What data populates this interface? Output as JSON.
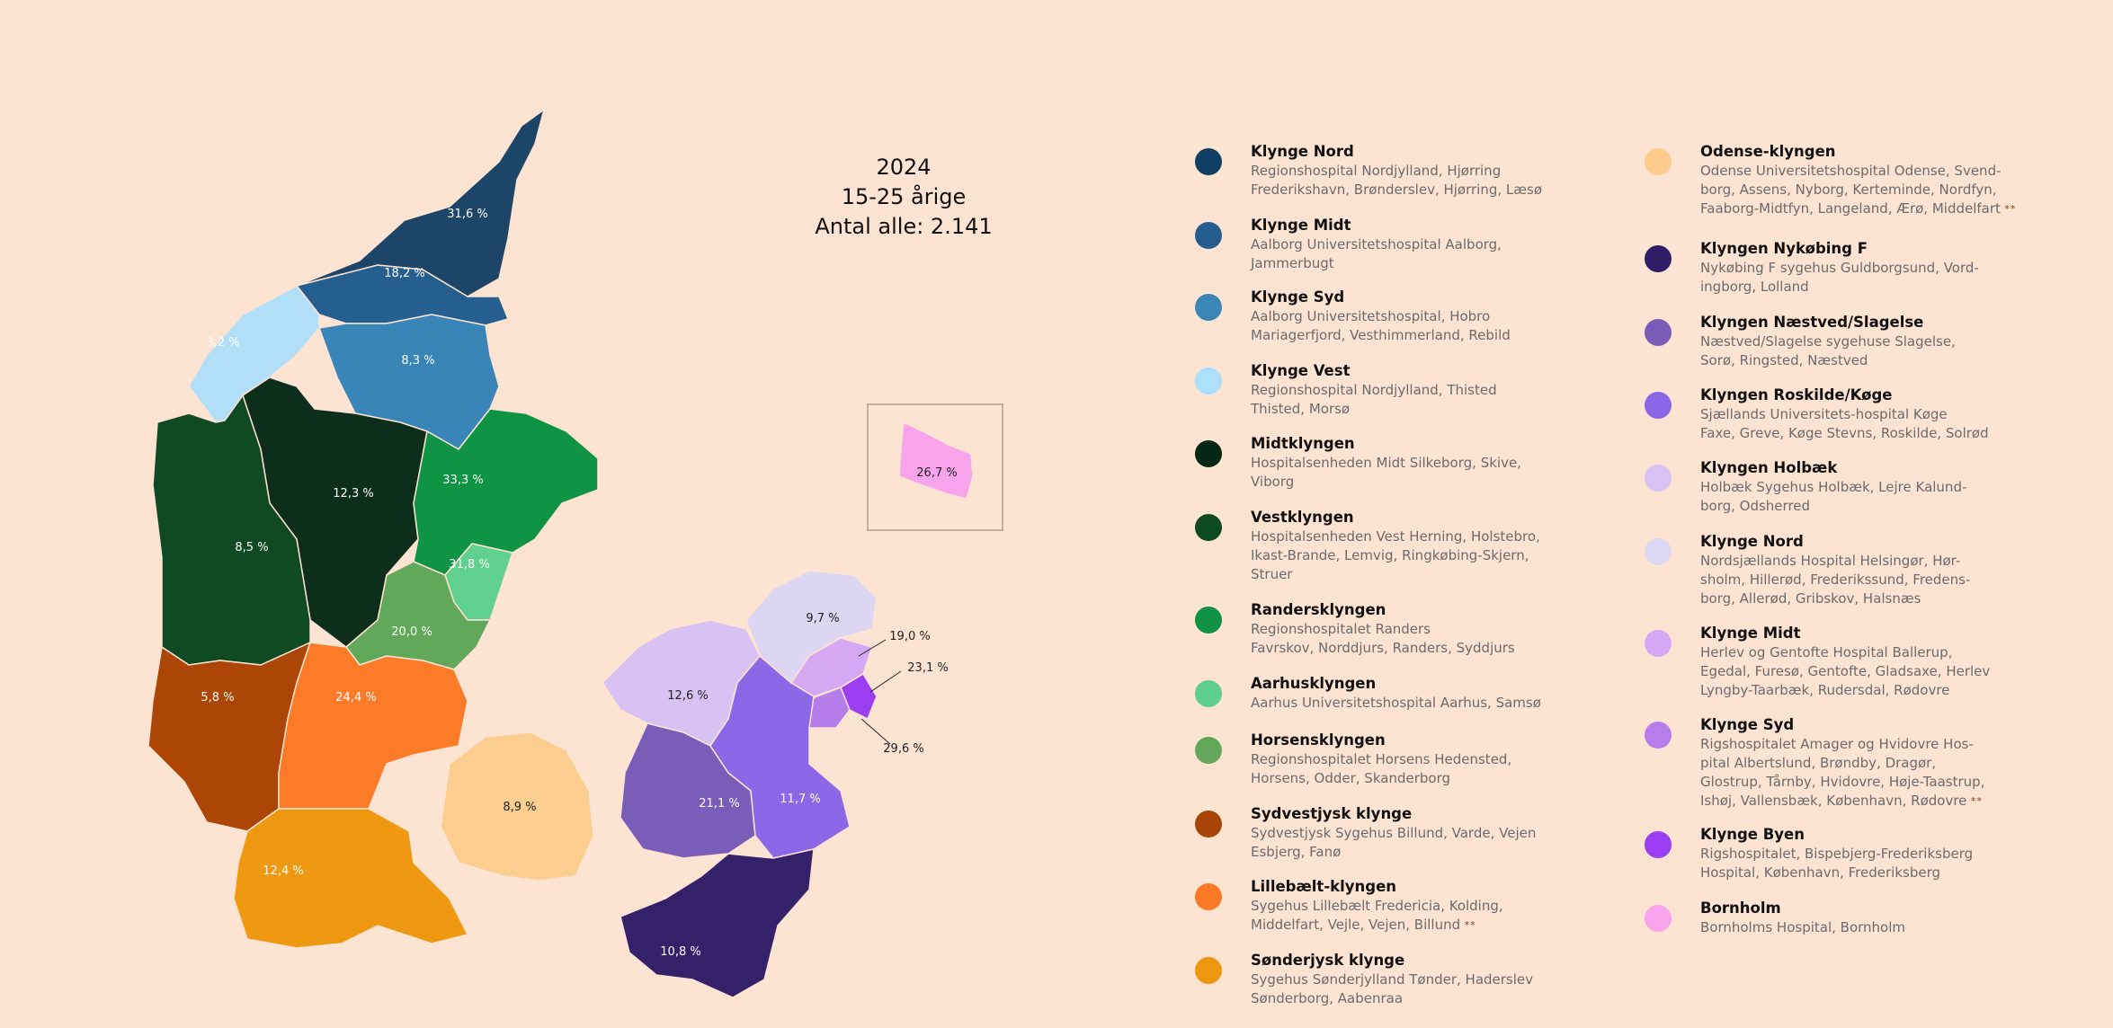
{
  "title": {
    "year": "2024",
    "subtitle": "15-25 årige",
    "total": "Antal alle: 2.141"
  },
  "regions": [
    {
      "name": "Klynge Nord",
      "value": "31,6 %",
      "color": "#1d4567"
    },
    {
      "name": "Klynge Midt",
      "value": "18,2 %",
      "color": "#255f8f"
    },
    {
      "name": "Klynge Syd",
      "value": "8,3 %",
      "color": "#3a85b7"
    },
    {
      "name": "Klynge Vest",
      "value": "3,2 %",
      "color": "#b2dff8"
    },
    {
      "name": "Midtklyngen",
      "value": "12,3 %",
      "color": "#0c2e1b"
    },
    {
      "name": "Vestklyngen",
      "value": "8,5 %",
      "color": "#0f4a23"
    },
    {
      "name": "Randersklyngen",
      "value": "33,3 %",
      "color": "#0f9445"
    },
    {
      "name": "Aarhusklyngen",
      "value": "31,8 %",
      "color": "#60d08e"
    },
    {
      "name": "Horsensklyngen",
      "value": "20,0 %",
      "color": "#62a85a"
    },
    {
      "name": "Sydvestjysk klynge",
      "value": "5,8 %",
      "color": "#ab4606"
    },
    {
      "name": "Lillebælt-klyngen",
      "value": "24,4 %",
      "color": "#fb7b28"
    },
    {
      "name": "Sønderjysk klynge",
      "value": "12,4 %",
      "color": "#ef9812"
    },
    {
      "name": "Odense-klyngen",
      "value": "8,9 %",
      "color": "#fbcd8e"
    },
    {
      "name": "Klyngen Nykøbing F",
      "value": "10,8 %",
      "color": "#35216a"
    },
    {
      "name": "Klyngen Næstved/Slagelse",
      "value": "21,1 %",
      "color": "#7a5db8"
    },
    {
      "name": "Klyngen Roskilde/Køge",
      "value": "11,7 %",
      "color": "#8d68e6"
    },
    {
      "name": "Klyngen Holbæk",
      "value": "12,6 %",
      "color": "#d8c2f3"
    },
    {
      "name": "Klynge Nord (Sjælland)",
      "value": "9,7 %",
      "color": "#dcd6f2"
    },
    {
      "name": "Klynge Midt (Sjælland)",
      "value": "19,0 %",
      "color": "#d6a8f4"
    },
    {
      "name": "Klynge Syd (Sjælland)",
      "value": "23,1 %",
      "color": "#b67de8"
    },
    {
      "name": "Klynge Byen",
      "value": "29,6 %",
      "color": "#9a3ff0"
    },
    {
      "name": "Bornholm",
      "value": "26,7 %",
      "color": "#f8a4ec"
    }
  ],
  "legend": {
    "column1": [
      {
        "name": "Klynge Nord",
        "desc": "Regionshospital Nordjylland, Hjørring\nFrederikshavn, Brønderslev, Hjørring, Læsø",
        "color": "#103e63",
        "stars": ""
      },
      {
        "name": "Klynge Midt",
        "desc": "Aalborg Universitetshospital Aalborg,\nJammerbugt",
        "color": "#225d8e",
        "stars": ""
      },
      {
        "name": "Klynge Syd",
        "desc": "Aalborg Universitetshospital, Hobro\nMariagerfjord, Vesthimmerland, Rebild",
        "color": "#3a86b7",
        "stars": ""
      },
      {
        "name": "Klynge Vest",
        "desc": "Regionshospital Nordjylland, Thisted\nThisted, Morsø",
        "color": "#ade0fa",
        "stars": ""
      },
      {
        "name": "Midtklyngen",
        "desc": "Hospitalsenheden Midt Silkeborg, Skive,\nViborg",
        "color": "#062614",
        "stars": ""
      },
      {
        "name": "Vestklyngen",
        "desc": "Hospitalsenheden Vest Herning, Holstebro,\nIkast-Brande, Lemvig, Ringkøbing-Skjern,\nStruer",
        "color": "#0b4a20",
        "stars": ""
      },
      {
        "name": "Randersklyngen",
        "desc": "Regionshospitalet Randers\nFavrskov, Norddjurs, Randers, Syddjurs",
        "color": "#0e9244",
        "stars": ""
      },
      {
        "name": "Aarhusklyngen",
        "desc": "Aarhus Universitetshospital Aarhus, Samsø",
        "color": "#5fcf8e",
        "stars": ""
      },
      {
        "name": "Horsensklyngen",
        "desc": "Regionshospitalet Horsens Hedensted,\nHorsens, Odder, Skanderborg",
        "color": "#62a659",
        "stars": ""
      },
      {
        "name": "Sydvestjysk klynge",
        "desc": "Sydvestjysk Sygehus Billund, Varde, Vejen\nEsbjerg, Fanø",
        "color": "#a84403",
        "stars": ""
      },
      {
        "name": "Lillebælt-klyngen",
        "desc": "Sygehus Lillebælt Fredericia, Kolding,\nMiddelfart, Vejle, Vejen, Billund",
        "color": "#fb7a26",
        "stars": "**"
      },
      {
        "name": "Sønderjysk klynge",
        "desc": "Sygehus Sønderjylland Tønder, Haderslev\nSønderborg, Aabenraa",
        "color": "#ef970e",
        "stars": ""
      }
    ],
    "column2": [
      {
        "name": "Odense-klyngen",
        "desc": "Odense Universitetshospital Odense, Svend-\nborg, Assens, Nyborg, Kerteminde, Nordfyn,\nFaaborg-Midtfyn, Langeland, Ærø, Middelfart",
        "color": "#fdcc8c",
        "stars": "**"
      },
      {
        "name": "Klyngen Nykøbing F",
        "desc": "Nykøbing F sygehus Guldborgsund, Vord-\ningborg, Lolland",
        "color": "#2f1d66",
        "stars": ""
      },
      {
        "name": "Klyngen Næstved/Slagelse",
        "desc": "Næstved/Slagelse sygehuse Slagelse,\nSorø, Ringsted, Næstved",
        "color": "#7a5cb7",
        "stars": ""
      },
      {
        "name": "Klyngen Roskilde/Køge",
        "desc": "Sjællands Universitets-hospital Køge\nFaxe, Greve, Køge Stevns, Roskilde, Solrød",
        "color": "#8a66e6",
        "stars": ""
      },
      {
        "name": "Klyngen Holbæk",
        "desc": "Holbæk Sygehus Holbæk, Lejre Kalund-\nborg, Odsherred",
        "color": "#d9c2f4",
        "stars": ""
      },
      {
        "name": "Klynge Nord",
        "desc": "Nordsjællands Hospital Helsingør, Hør-\nsholm, Hillerød, Frederikssund, Fredens-\nborg, Allerød, Gribskov, Halsnæs",
        "color": "#dcd8f3",
        "stars": ""
      },
      {
        "name": "Klynge Midt",
        "desc": "Herlev og Gentofte Hospital Ballerup,\nEgedal, Furesø, Gentofte, Gladsaxe, Herlev\nLyngby-Taarbæk, Rudersdal, Rødovre",
        "color": "#d7a9f5",
        "stars": ""
      },
      {
        "name": "Klynge Syd",
        "desc": "Rigshospitalet Amager og Hvidovre Hos-\npital Albertslund, Brøndby, Dragør,\nGlostrup, Tårnby, Hvidovre, Høje-Taastrup,\nIshøj, Vallensbæk, København, Rødovre",
        "color": "#b77ee9",
        "stars": "**"
      },
      {
        "name": "Klynge Byen",
        "desc": "Rigshospitalet, Bispebjerg-Frederiksberg\nHospital, København, Frederiksberg",
        "color": "#9b3ef2",
        "stars": ""
      },
      {
        "name": "Bornholm",
        "desc": "Bornholms Hospital, Bornholm",
        "color": "#f8a4ec",
        "stars": ""
      }
    ]
  }
}
